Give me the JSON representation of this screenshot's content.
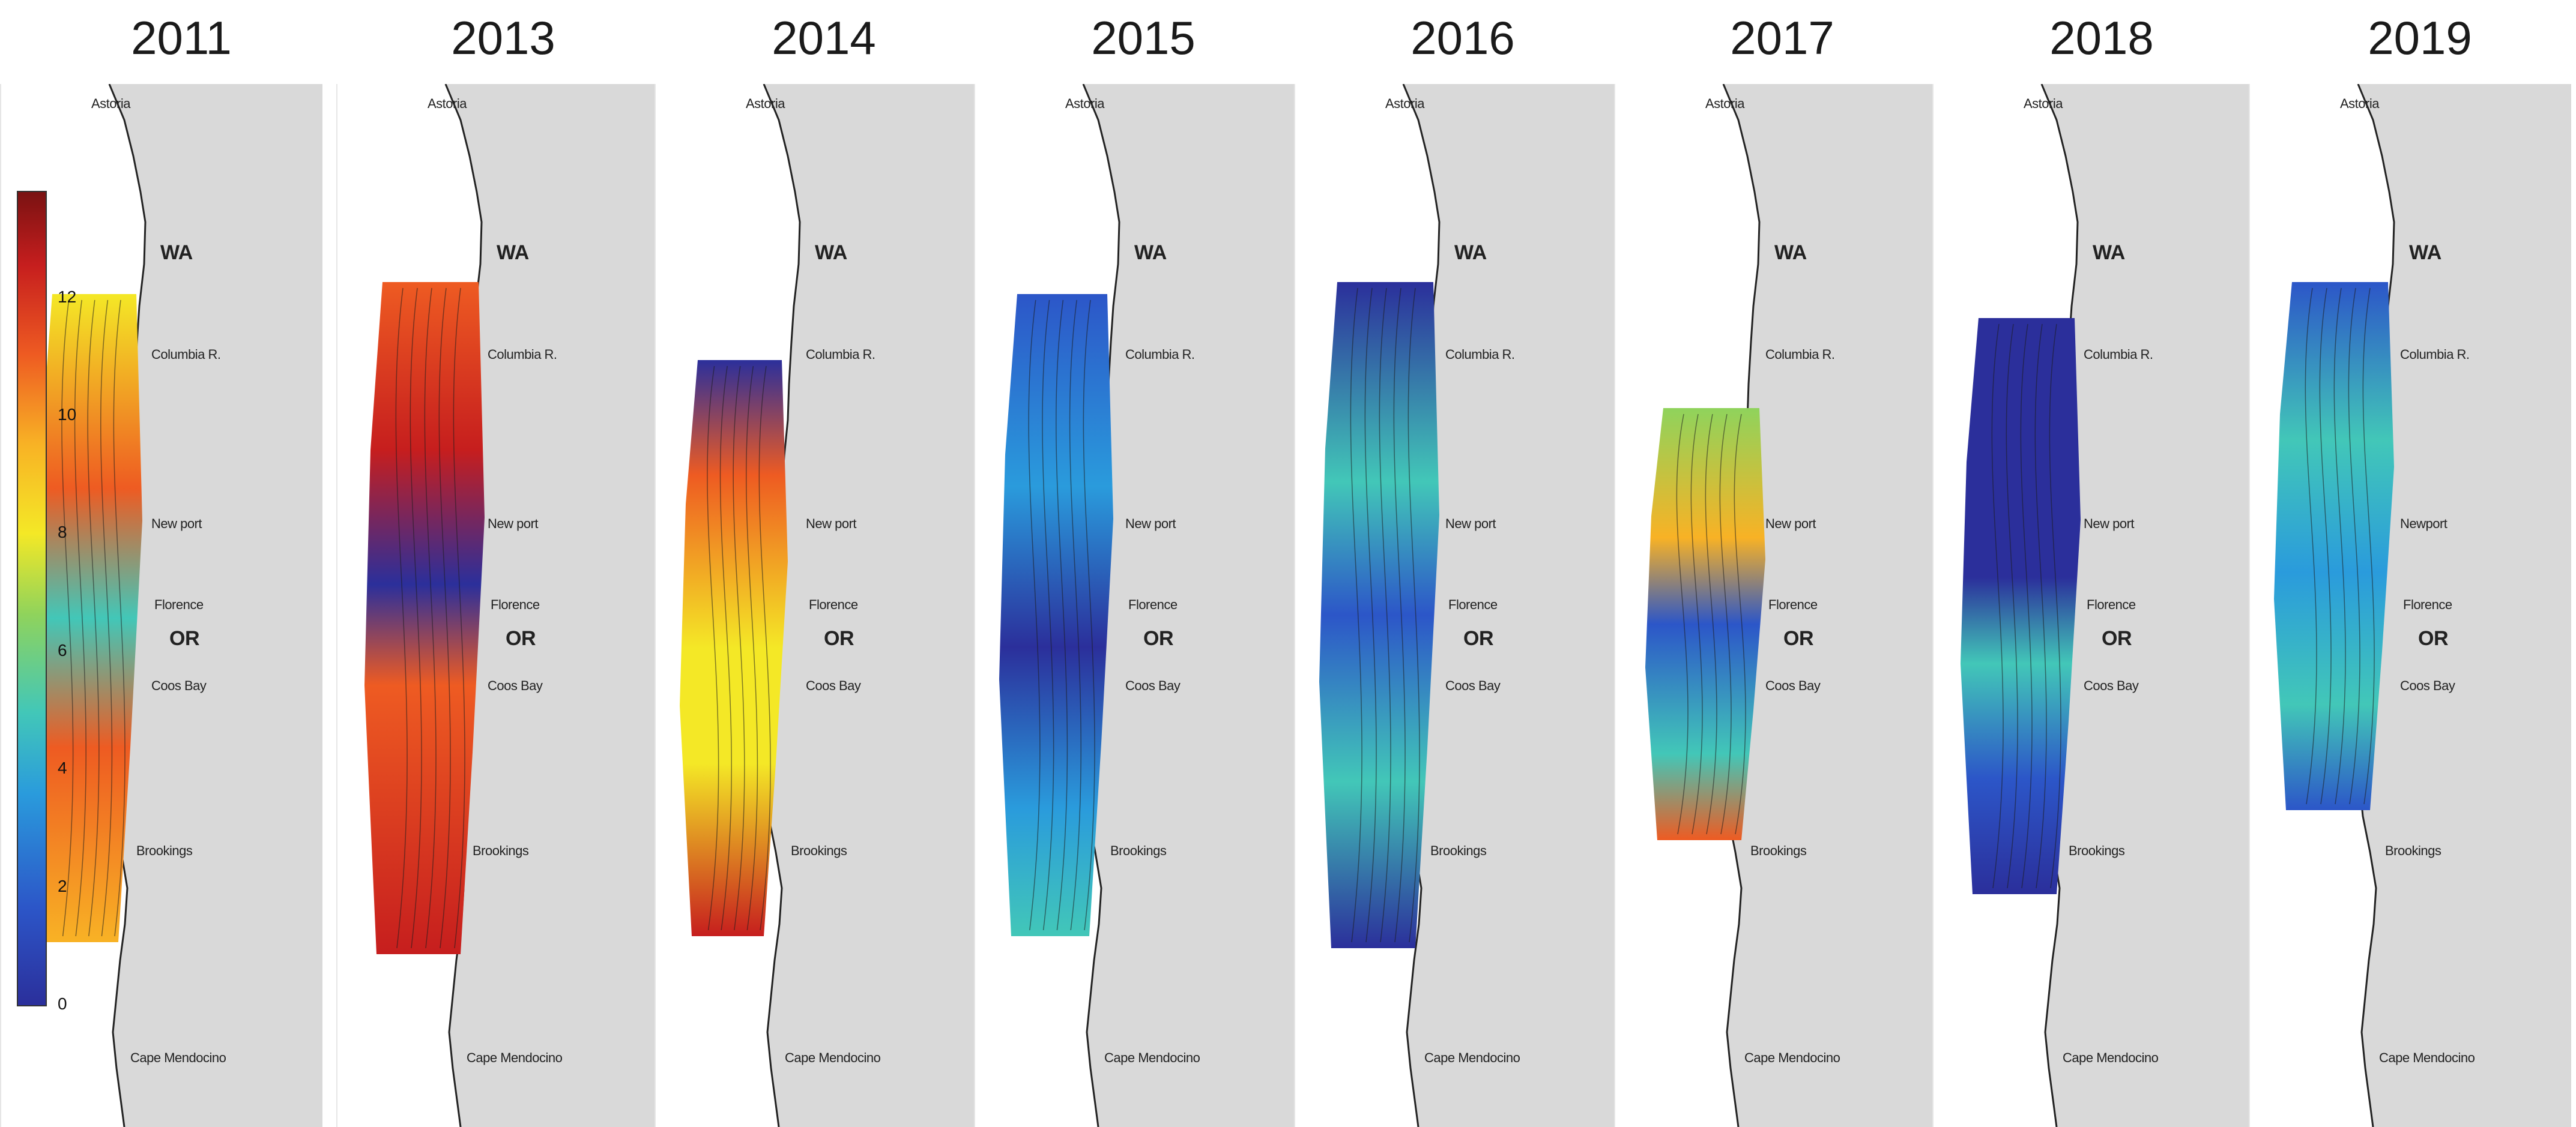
{
  "years": [
    "2011",
    "2013",
    "2014",
    "2015",
    "2016",
    "2017",
    "2018",
    "2019"
  ],
  "map_labels": {
    "state_north": "WA",
    "river": "Columbia R.",
    "city_newport": "New port",
    "city_newport_2019": "Newport",
    "city_florence": "Florence",
    "state_south": "OR",
    "city_coos": "Coos Bay",
    "city_brookings": "Brookings",
    "cape": "Cape Mendocino",
    "top_label": "Astoria"
  },
  "colorbar": {
    "ticks": [
      "0",
      "2",
      "4",
      "6",
      "8",
      "10",
      "12"
    ],
    "colors_low_to_high": [
      "#2b2f9b",
      "#2a9bdc",
      "#8fd35c",
      "#f4e826",
      "#ee5b22",
      "#7a1212"
    ]
  },
  "panel_colors": {
    "land": "#d9d9d9",
    "coast_line": "#222222"
  }
}
